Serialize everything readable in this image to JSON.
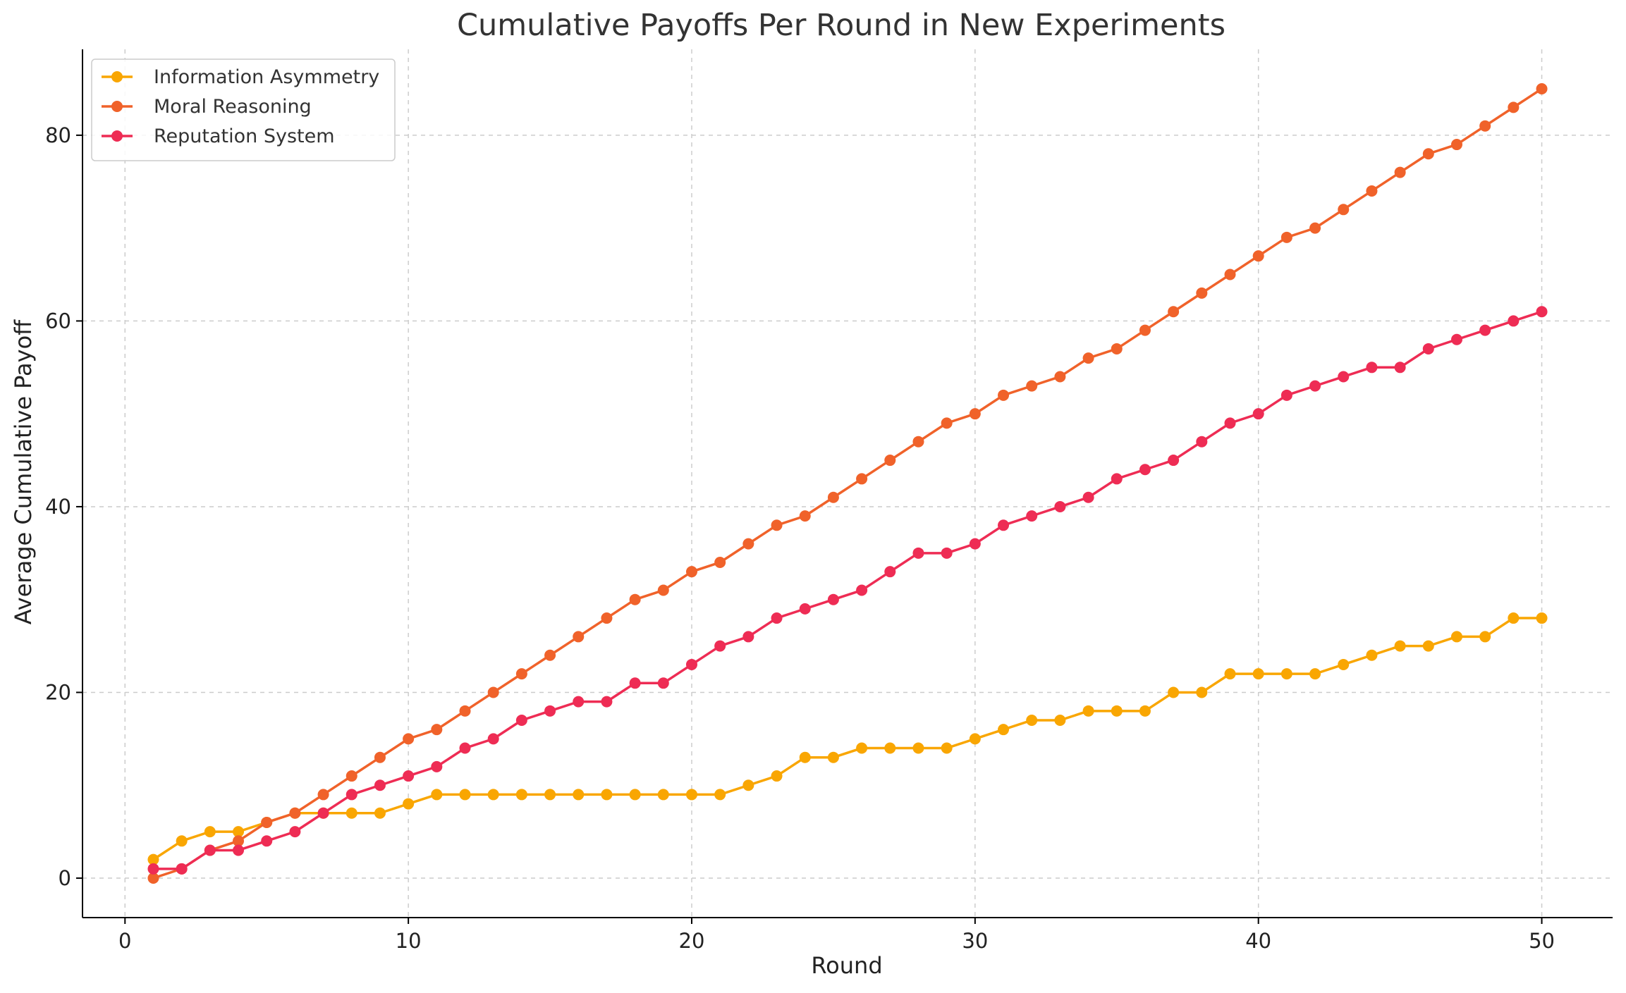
{
  "chart_data": {
    "type": "line",
    "title": "Cumulative Payoffs Per Round in New Experiments",
    "xlabel": "Round",
    "ylabel": "Average Cumulative Payoff",
    "xlim": [
      -1.5,
      52.5
    ],
    "ylim": [
      -4.25,
      89.25
    ],
    "xticks": [
      0,
      10,
      20,
      30,
      40,
      50
    ],
    "yticks": [
      0,
      20,
      40,
      60,
      80
    ],
    "grid": true,
    "legend_position": "top-left",
    "x": [
      1,
      2,
      3,
      4,
      5,
      6,
      7,
      8,
      9,
      10,
      11,
      12,
      13,
      14,
      15,
      16,
      17,
      18,
      19,
      20,
      21,
      22,
      23,
      24,
      25,
      26,
      27,
      28,
      29,
      30,
      31,
      32,
      33,
      34,
      35,
      36,
      37,
      38,
      39,
      40,
      41,
      42,
      43,
      44,
      45,
      46,
      47,
      48,
      49,
      50
    ],
    "series": [
      {
        "name": "Information Asymmetry",
        "color": "#F9A602",
        "values": [
          2,
          4,
          5,
          5,
          6,
          7,
          7,
          7,
          7,
          8,
          9,
          9,
          9,
          9,
          9,
          9,
          9,
          9,
          9,
          9,
          9,
          10,
          11,
          13,
          13,
          14,
          14,
          14,
          14,
          15,
          16,
          17,
          17,
          18,
          18,
          18,
          20,
          20,
          22,
          22,
          22,
          22,
          23,
          24,
          25,
          25,
          26,
          26,
          28,
          28
        ]
      },
      {
        "name": "Moral Reasoning",
        "color": "#F0622A",
        "values": [
          0,
          1,
          3,
          4,
          6,
          7,
          9,
          11,
          13,
          15,
          16,
          18,
          20,
          22,
          24,
          26,
          28,
          30,
          31,
          33,
          34,
          36,
          38,
          39,
          41,
          43,
          45,
          47,
          49,
          50,
          52,
          53,
          54,
          56,
          57,
          59,
          61,
          63,
          65,
          67,
          69,
          70,
          72,
          74,
          76,
          78,
          79,
          81,
          83,
          85
        ]
      },
      {
        "name": "Reputation System",
        "color": "#EE2C54",
        "values": [
          1,
          1,
          3,
          3,
          4,
          5,
          7,
          9,
          10,
          11,
          12,
          14,
          15,
          17,
          18,
          19,
          19,
          21,
          21,
          23,
          25,
          26,
          28,
          29,
          30,
          31,
          33,
          35,
          35,
          36,
          38,
          39,
          40,
          41,
          43,
          44,
          45,
          47,
          49,
          50,
          52,
          53,
          54,
          55,
          55,
          57,
          58,
          59,
          60,
          61
        ]
      }
    ]
  }
}
